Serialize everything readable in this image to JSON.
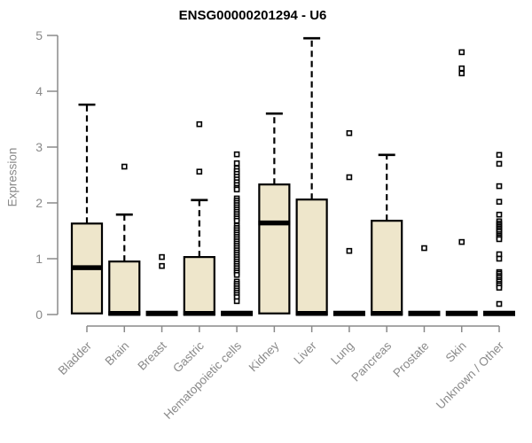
{
  "chart_data": {
    "type": "boxplot",
    "title": "ENSG00000201294 - U6",
    "ylabel": "Expression",
    "xlabel": "",
    "ylim": [
      0,
      5
    ],
    "yticks": [
      0,
      1,
      2,
      3,
      4,
      5
    ],
    "grid": false,
    "legend": "none",
    "colors": {
      "box_fill": "#EEE6CB",
      "box_stroke": "#000000",
      "median_color": "#000000",
      "whisker_color": "#000000",
      "outlier_fill": "#FFFFFF",
      "outlier_stroke": "#000000",
      "axis_color": "#8A8A8A",
      "tick_label_color": "#8A8A8A",
      "title_color": "#000000",
      "background": "#FFFFFF"
    },
    "categories": [
      "Bladder",
      "Brain",
      "Breast",
      "Gastric",
      "Hematopoietic cells",
      "Kidney",
      "Liver",
      "Lung",
      "Pancreas",
      "Prostate",
      "Skin",
      "Unknown / Other"
    ],
    "boxes": [
      {
        "category": "Bladder",
        "low": 0.02,
        "q1": 0.02,
        "median": 0.84,
        "q3": 1.63,
        "high": 3.76,
        "outliers": []
      },
      {
        "category": "Brain",
        "low": 0,
        "q1": 0,
        "median": 0.02,
        "q3": 0.95,
        "high": 1.79,
        "outliers": [
          2.65
        ]
      },
      {
        "category": "Breast",
        "low": 0,
        "q1": 0,
        "median": 0.02,
        "q3": 0.02,
        "high": 0.02,
        "outliers": [
          1.03,
          0.87
        ]
      },
      {
        "category": "Gastric",
        "low": 0,
        "q1": 0,
        "median": 0.02,
        "q3": 1.03,
        "high": 2.05,
        "outliers": [
          3.41,
          2.56
        ]
      },
      {
        "category": "Hematopoietic cells",
        "low": 0,
        "q1": 0,
        "median": 0.02,
        "q3": 0.02,
        "high": 0.02,
        "outliers": [
          2.87,
          2.71,
          2.62,
          2.57,
          2.52,
          2.47,
          2.42,
          2.37,
          2.32,
          2.27,
          2.24,
          2.08,
          2.04,
          2.0,
          1.96,
          1.92,
          1.88,
          1.84,
          1.8,
          1.76,
          1.72,
          1.68,
          1.59,
          1.55,
          1.51,
          1.47,
          1.43,
          1.39,
          1.35,
          1.31,
          1.27,
          1.23,
          1.19,
          1.15,
          1.11,
          1.07,
          1.03,
          0.99,
          0.95,
          0.91,
          0.87,
          0.83,
          0.79,
          0.75,
          0.71,
          0.59,
          0.55,
          0.51,
          0.47,
          0.43,
          0.39,
          0.35,
          0.31,
          0.24
        ]
      },
      {
        "category": "Kidney",
        "low": 0.02,
        "q1": 0.02,
        "median": 1.64,
        "q3": 2.33,
        "high": 3.6,
        "outliers": []
      },
      {
        "category": "Liver",
        "low": 0,
        "q1": 0,
        "median": 0.02,
        "q3": 2.06,
        "high": 4.95,
        "outliers": []
      },
      {
        "category": "Lung",
        "low": 0,
        "q1": 0,
        "median": 0.02,
        "q3": 0.02,
        "high": 0.02,
        "outliers": [
          3.25,
          2.46,
          1.14
        ]
      },
      {
        "category": "Pancreas",
        "low": 0,
        "q1": 0,
        "median": 0.02,
        "q3": 1.68,
        "high": 2.86,
        "outliers": []
      },
      {
        "category": "Prostate",
        "low": 0,
        "q1": 0,
        "median": 0.02,
        "q3": 0.02,
        "high": 0.02,
        "outliers": [
          1.19
        ]
      },
      {
        "category": "Skin",
        "low": 0,
        "q1": 0,
        "median": 0.02,
        "q3": 0.02,
        "high": 0.02,
        "outliers": [
          4.7,
          4.41,
          4.32,
          1.3
        ]
      },
      {
        "category": "Unknown / Other",
        "low": 0,
        "q1": 0,
        "median": 0.02,
        "q3": 0.02,
        "high": 0.02,
        "outliers": [
          2.86,
          2.7,
          2.3,
          2.02,
          1.79,
          1.67,
          1.63,
          1.6,
          1.57,
          1.54,
          1.51,
          1.48,
          1.44,
          1.41,
          1.38,
          1.35,
          1.08,
          1.0,
          0.76,
          0.73,
          0.69,
          0.66,
          0.62,
          0.59,
          0.55,
          0.52,
          0.48,
          0.19
        ]
      }
    ]
  }
}
